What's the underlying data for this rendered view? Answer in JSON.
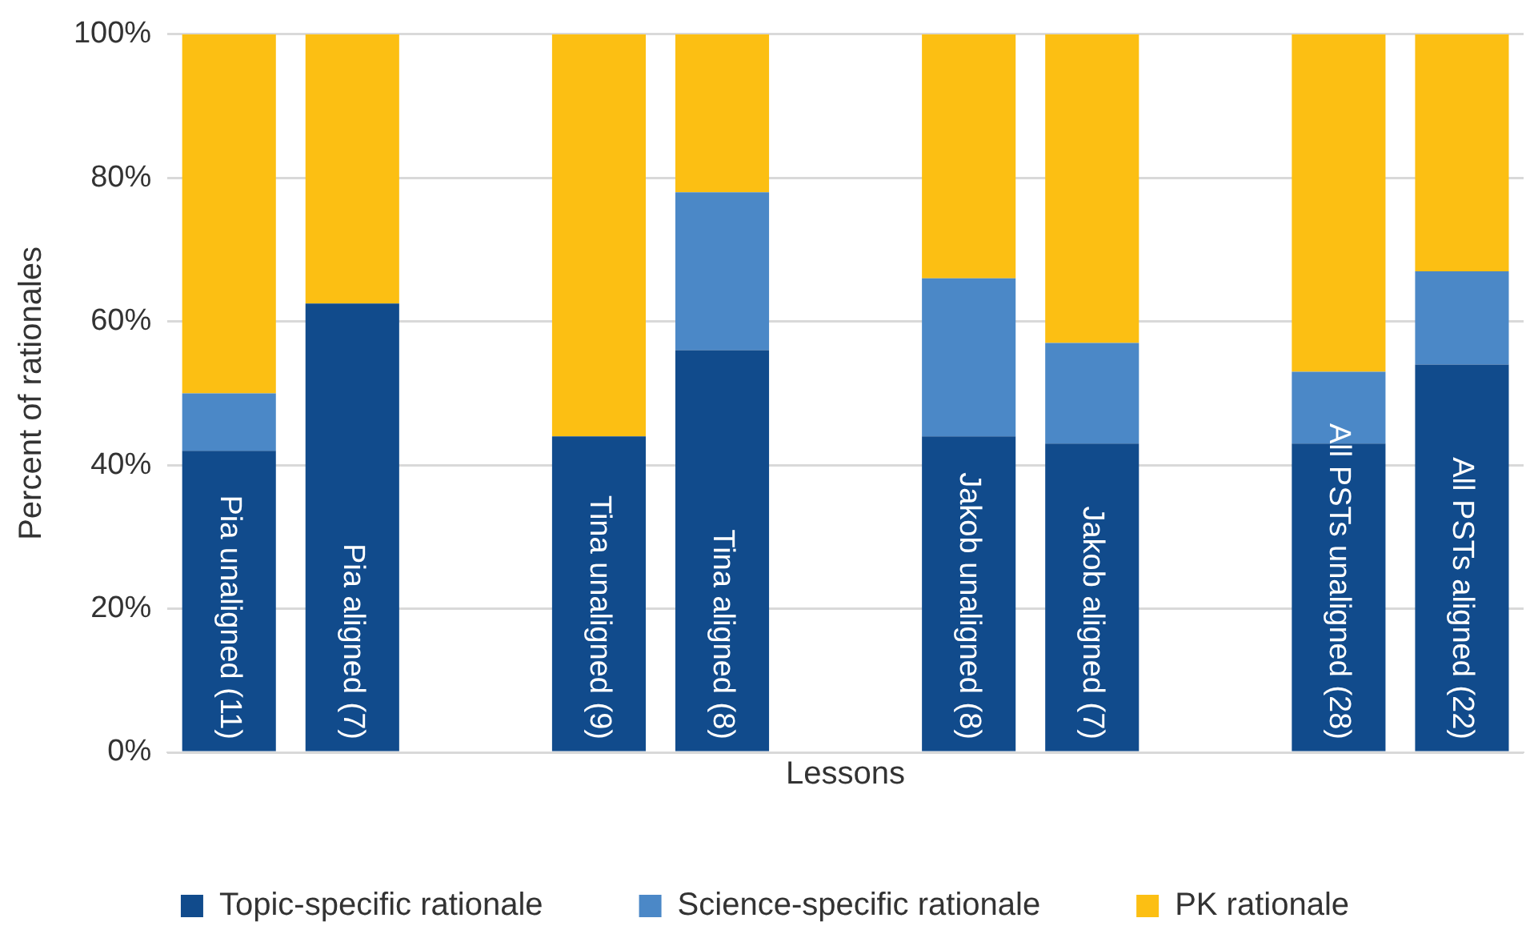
{
  "chart_data": {
    "type": "bar",
    "stacked": true,
    "xlabel": "Lessons",
    "ylabel": "Percent of rationales",
    "categories": [
      "Pia unaligned (11)",
      "Pia aligned (7)",
      null,
      "Tina unaligned (9)",
      "Tina aligned (8)",
      null,
      "Jakob unaligned (8)",
      "Jakob aligned (7)",
      null,
      "All PSTs unaligned (28)",
      "All PSTs aligned (22)"
    ],
    "series": [
      {
        "name": "Topic-specific rationale",
        "color": "#114b8c",
        "values": [
          42,
          62.5,
          null,
          44,
          56,
          null,
          44,
          43,
          null,
          43,
          54
        ]
      },
      {
        "name": "Science-specific rationale",
        "color": "#4b88c7",
        "values": [
          8,
          0,
          null,
          0,
          22,
          null,
          22,
          14,
          null,
          10,
          13
        ]
      },
      {
        "name": "PK rationale",
        "color": "#fcbf13",
        "values": [
          50,
          37.5,
          null,
          56,
          22,
          null,
          34,
          43,
          null,
          47,
          33
        ]
      }
    ],
    "ylim": [
      0,
      100
    ],
    "yticks": [
      {
        "value": 0,
        "label": "0%"
      },
      {
        "value": 20,
        "label": "20%"
      },
      {
        "value": 40,
        "label": "40%"
      },
      {
        "value": 60,
        "label": "60%"
      },
      {
        "value": 80,
        "label": "80%"
      },
      {
        "value": 100,
        "label": "100%"
      }
    ],
    "grid": "y",
    "legend": "bottom",
    "tick_labels": "y"
  }
}
